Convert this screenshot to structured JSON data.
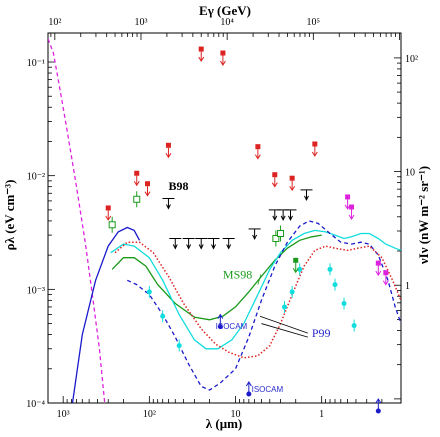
{
  "chart_data": {
    "type": "line",
    "x_axis": {
      "label": "λ (μm)",
      "scale": "log",
      "reversed": true,
      "range": [
        1500,
        0.12
      ],
      "tick_values": [
        1000,
        100,
        10,
        1
      ],
      "tick_labels": [
        "10³",
        "10²",
        "10",
        "1"
      ]
    },
    "top_axis": {
      "label": "Eγ (GeV)",
      "scale": "log",
      "tick_values": [
        100000,
        10000,
        1000,
        100
      ],
      "tick_labels": [
        "10⁵",
        "10⁴",
        "10³",
        "10²"
      ]
    },
    "y_axis": {
      "label": "ρλ (eV cm⁻³)",
      "scale": "log",
      "range": [
        0.0001,
        0.18
      ],
      "tick_values": [
        0.0001,
        0.001,
        0.01,
        0.1
      ],
      "tick_labels": [
        "10⁻⁴",
        "10⁻³",
        "10⁻²",
        "10⁻¹"
      ]
    },
    "right_axis": {
      "label": "νIν (nW m⁻² sr⁻¹)",
      "scale": "log",
      "tick_values": [
        1,
        10,
        100
      ],
      "tick_labels": [
        "1",
        "10",
        "10²"
      ]
    },
    "annotations": [
      {
        "text": "B98",
        "x": 60,
        "y": 0.0075,
        "color": "#000000"
      },
      {
        "text": "MS98",
        "x": 14,
        "y": 0.00125,
        "color": "#1a9a1a"
      },
      {
        "text": "P99",
        "x": 1.3,
        "y": 0.00038,
        "color": "#2a2acc"
      },
      {
        "text": "ISOCAM",
        "x": 17,
        "y": 0.00045,
        "color": "#2a2acc"
      },
      {
        "text": "ISOCAM",
        "x": 6.5,
        "y": 0.000125,
        "color": "#2a2acc"
      }
    ],
    "series": [
      {
        "style": "dashed",
        "color": "#dd22dd",
        "points": [
          [
            1500,
            0.16
          ],
          [
            1300,
            0.12
          ],
          [
            1100,
            0.06
          ],
          [
            900,
            0.025
          ],
          [
            700,
            0.008
          ],
          [
            550,
            0.0025
          ],
          [
            450,
            0.0008
          ],
          [
            380,
            0.0003
          ],
          [
            330,
            0.0001
          ]
        ]
      },
      {
        "style": "solid",
        "color": "#1a1acc",
        "points": [
          [
            780,
            0.0001
          ],
          [
            600,
            0.0004
          ],
          [
            420,
            0.0012
          ],
          [
            300,
            0.0024
          ],
          [
            230,
            0.0032
          ],
          [
            180,
            0.0035
          ],
          [
            150,
            0.0033
          ],
          [
            130,
            0.0027
          ]
        ]
      },
      {
        "style": "solid",
        "color": "#1a9a1a",
        "points": [
          [
            270,
            0.0015
          ],
          [
            200,
            0.0019
          ],
          [
            150,
            0.0019
          ],
          [
            110,
            0.0016
          ],
          [
            80,
            0.0011
          ],
          [
            50,
            0.00075
          ],
          [
            30,
            0.00057
          ],
          [
            20,
            0.00054
          ],
          [
            14,
            0.00058
          ],
          [
            10,
            0.0007
          ],
          [
            7,
            0.00095
          ],
          [
            5,
            0.0013
          ],
          [
            3.5,
            0.0018
          ],
          [
            2.5,
            0.0023
          ],
          [
            1.8,
            0.0027
          ],
          [
            1.3,
            0.0029
          ],
          [
            1.0,
            0.003
          ]
        ]
      },
      {
        "style": "solid",
        "color": "#11dddd",
        "points": [
          [
            280,
            0.0021
          ],
          [
            200,
            0.0025
          ],
          [
            150,
            0.0024
          ],
          [
            100,
            0.0019
          ],
          [
            70,
            0.0012
          ],
          [
            45,
            0.0006
          ],
          [
            30,
            0.00036
          ],
          [
            22,
            0.0003
          ],
          [
            16,
            0.0003
          ],
          [
            11,
            0.00036
          ],
          [
            8,
            0.0005
          ],
          [
            5.5,
            0.0009
          ],
          [
            4,
            0.0015
          ],
          [
            3,
            0.0021
          ],
          [
            2.2,
            0.0027
          ],
          [
            1.6,
            0.0031
          ],
          [
            1.2,
            0.0033
          ],
          [
            0.9,
            0.0032
          ],
          [
            0.7,
            0.003
          ],
          [
            0.55,
            0.0028
          ],
          [
            0.45,
            0.0029
          ],
          [
            0.35,
            0.0031
          ],
          [
            0.28,
            0.0031
          ],
          [
            0.22,
            0.0028
          ],
          [
            0.18,
            0.0025
          ],
          [
            0.14,
            0.0023
          ],
          [
            0.12,
            0.0022
          ]
        ]
      },
      {
        "style": "dashed",
        "color": "#1a1acc",
        "points": [
          [
            180,
            0.0012
          ],
          [
            140,
            0.0011
          ],
          [
            100,
            0.0009
          ],
          [
            70,
            0.0006
          ],
          [
            50,
            0.00038
          ],
          [
            35,
            0.00022
          ],
          [
            25,
            0.00014
          ],
          [
            20,
            0.00013
          ],
          [
            15,
            0.00015
          ],
          [
            10,
            0.0002
          ],
          [
            7,
            0.00038
          ],
          [
            5,
            0.0008
          ],
          [
            3.5,
            0.0016
          ],
          [
            2.5,
            0.0026
          ],
          [
            1.8,
            0.0036
          ],
          [
            1.4,
            0.004
          ],
          [
            1.1,
            0.0038
          ],
          [
            0.8,
            0.0031
          ],
          [
            0.6,
            0.0026
          ],
          [
            0.45,
            0.0025
          ],
          [
            0.35,
            0.0026
          ],
          [
            0.28,
            0.0025
          ],
          [
            0.22,
            0.002
          ],
          [
            0.17,
            0.0012
          ],
          [
            0.14,
            0.0007
          ],
          [
            0.12,
            0.0005
          ]
        ]
      },
      {
        "style": "dotted",
        "color": "#dd2222",
        "points": [
          [
            250,
            0.0021
          ],
          [
            180,
            0.0026
          ],
          [
            130,
            0.0026
          ],
          [
            90,
            0.0021
          ],
          [
            60,
            0.0013
          ],
          [
            40,
            0.00075
          ],
          [
            25,
            0.00045
          ],
          [
            17,
            0.00033
          ],
          [
            12,
            0.00028
          ],
          [
            8,
            0.00025
          ],
          [
            5.5,
            0.00026
          ],
          [
            4,
            0.00032
          ],
          [
            3,
            0.0005
          ],
          [
            2.2,
            0.0009
          ],
          [
            1.6,
            0.0016
          ],
          [
            1.2,
            0.0022
          ],
          [
            0.9,
            0.0024
          ],
          [
            0.7,
            0.0023
          ],
          [
            0.5,
            0.0022
          ],
          [
            0.38,
            0.0023
          ],
          [
            0.28,
            0.0024
          ],
          [
            0.2,
            0.0019
          ],
          [
            0.15,
            0.0012
          ],
          [
            0.12,
            0.0008
          ]
        ]
      }
    ],
    "markers": [
      {
        "type": "upper_limit_filled",
        "color": "#dd2222",
        "points": [
          [
            300,
            0.0052
          ],
          [
            140,
            0.0105
          ],
          [
            105,
            0.0085
          ],
          [
            60,
            0.0185
          ],
          [
            25,
            0.13
          ],
          [
            14,
            0.12
          ],
          [
            5.5,
            0.018
          ],
          [
            3.5,
            0.0102
          ],
          [
            2.2,
            0.0095
          ],
          [
            1.2,
            0.019
          ]
        ]
      },
      {
        "type": "open_square_errorbar",
        "color": "#1a9a1a",
        "points": [
          [
            270,
            0.0037
          ],
          [
            140,
            0.0062
          ],
          [
            3.4,
            0.0028
          ],
          [
            3.0,
            0.0031
          ]
        ]
      },
      {
        "type": "upper_limit_filled",
        "color": "#dd22dd",
        "points": [
          [
            0.5,
            0.0065
          ],
          [
            0.45,
            0.0053
          ],
          [
            0.22,
            0.0017
          ],
          [
            0.18,
            0.0014
          ]
        ]
      },
      {
        "type": "point_errorbar",
        "color": "#11dddd",
        "points": [
          [
            100,
            0.00095
          ],
          [
            70,
            0.00058
          ],
          [
            45,
            0.00032
          ],
          [
            2.7,
            0.0007
          ],
          [
            2.2,
            0.00095
          ],
          [
            1.8,
            0.0015
          ],
          [
            0.8,
            0.0015
          ],
          [
            0.7,
            0.0011
          ],
          [
            0.55,
            0.00075
          ],
          [
            0.42,
            0.00048
          ]
        ]
      },
      {
        "type": "upper_limit_filled",
        "color": "#1a9a1a",
        "points": [
          [
            2.0,
            0.0018
          ]
        ]
      },
      {
        "type": "lower_limit",
        "color": "#1a1acc",
        "points": [
          [
            15,
            0.00047
          ],
          [
            7,
            0.00012
          ],
          [
            0.22,
            8.5e-05
          ]
        ]
      },
      {
        "type": "upper_limit_open",
        "color": "#000000",
        "points": [
          [
            60,
            0.0063
          ],
          [
            50,
            0.0028
          ],
          [
            35,
            0.0028
          ],
          [
            25,
            0.0028
          ],
          [
            18,
            0.0028
          ],
          [
            12,
            0.0028
          ],
          [
            6,
            0.0034
          ],
          [
            3.5,
            0.005
          ],
          [
            2.8,
            0.005
          ],
          [
            2.3,
            0.005
          ],
          [
            1.5,
            0.0075
          ]
        ]
      }
    ]
  }
}
